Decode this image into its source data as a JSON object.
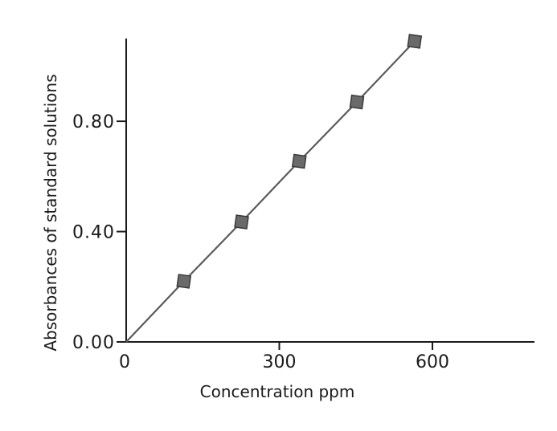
{
  "chart_data": {
    "type": "line",
    "title": "",
    "xlabel": "Concentration ppm",
    "ylabel": "Absorbances of standard solutions",
    "xlim": [
      0,
      800
    ],
    "ylim": [
      0,
      1.1
    ],
    "x_ticks": [
      {
        "value": 0,
        "label": "0"
      },
      {
        "value": 300,
        "label": "300"
      },
      {
        "value": 600,
        "label": "600"
      }
    ],
    "y_ticks": [
      {
        "value": 0.0,
        "label": "0.00"
      },
      {
        "value": 0.4,
        "label": "0.40"
      },
      {
        "value": 0.8,
        "label": "0.80"
      }
    ],
    "grid": false,
    "legend": "none",
    "series": [
      {
        "points": [
          {
            "x": 0,
            "y": 0.0,
            "marker": false
          },
          {
            "x": 113,
            "y": 0.22,
            "marker": true
          },
          {
            "x": 226,
            "y": 0.435,
            "marker": true
          },
          {
            "x": 339,
            "y": 0.655,
            "marker": true
          },
          {
            "x": 452,
            "y": 0.87,
            "marker": true
          },
          {
            "x": 565,
            "y": 1.09,
            "marker": true
          }
        ]
      }
    ],
    "colors": {
      "axis": "#1a1a1a",
      "line": "#5a5a5a",
      "marker_fill": "#6a6a6a",
      "marker_stroke": "#3a3a3a"
    }
  }
}
